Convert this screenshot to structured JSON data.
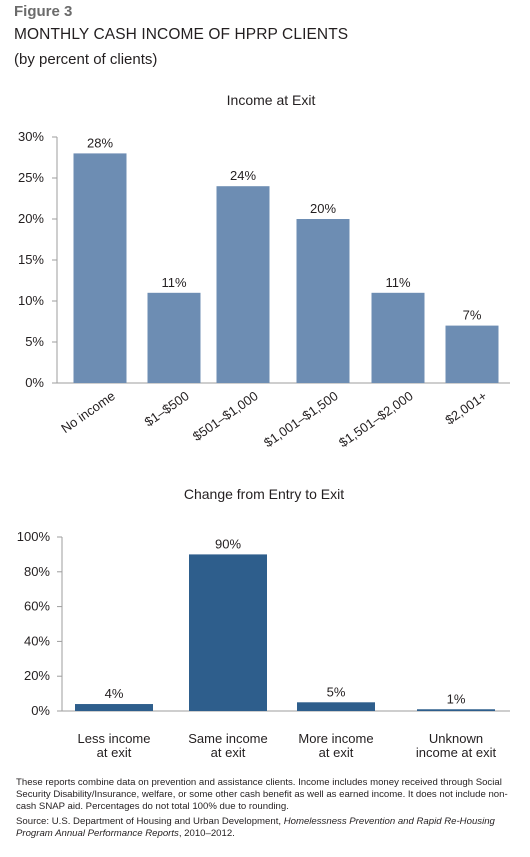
{
  "figure": {
    "label": "Figure 3",
    "title": "MONTHLY CASH INCOME OF HPRP CLIENTS",
    "subtitle": "(by percent of clients)"
  },
  "chart_data": [
    {
      "type": "bar",
      "title": "Income at Exit",
      "categories": [
        "No income",
        "$1–$500",
        "$501–$1,000",
        "$1,001–$1,500",
        "$1,501–$2,000",
        "$2,001+"
      ],
      "values": [
        28,
        11,
        24,
        20,
        11,
        7
      ],
      "data_labels": [
        "28%",
        "11%",
        "24%",
        "20%",
        "11%",
        "7%"
      ],
      "ylim": [
        0,
        30
      ],
      "yticks": [
        0,
        5,
        10,
        15,
        20,
        25,
        30
      ],
      "ytick_labels": [
        "0%",
        "5%",
        "10%",
        "15%",
        "20%",
        "25%",
        "30%"
      ],
      "bar_color": "#6d8db3",
      "category_label_rotation": "diagonal",
      "grid": false
    },
    {
      "type": "bar",
      "title": "Change from Entry to Exit",
      "categories": [
        "Less income at exit",
        "Same income at exit",
        "More income at exit",
        "Unknown income at exit"
      ],
      "category_lines": [
        [
          "Less income",
          "at exit"
        ],
        [
          "Same income",
          "at exit"
        ],
        [
          "More income",
          "at exit"
        ],
        [
          "Unknown",
          "income at exit"
        ]
      ],
      "values": [
        4,
        90,
        5,
        1
      ],
      "data_labels": [
        "4%",
        "90%",
        "5%",
        "1%"
      ],
      "ylim": [
        0,
        100
      ],
      "yticks": [
        0,
        20,
        40,
        60,
        80,
        100
      ],
      "ytick_labels": [
        "0%",
        "20%",
        "40%",
        "60%",
        "80%",
        "100%"
      ],
      "bar_color": "#2e5e8c",
      "category_label_rotation": "horizontal",
      "grid": false
    }
  ],
  "notes": {
    "text": "These reports combine data on prevention and assistance clients. Income includes money received through Social Security Disability/Insurance, welfare, or some other cash benefit as well as earned income. It does not include non-cash SNAP aid. Percentages do not total 100% due to rounding.",
    "source_prefix": "Source: U.S. Department of Housing and Urban Development, ",
    "source_title": "Homelessness Prevention and Rapid Re-Housing Program Annual Performance Reports",
    "source_suffix": ", 2010–2012."
  }
}
